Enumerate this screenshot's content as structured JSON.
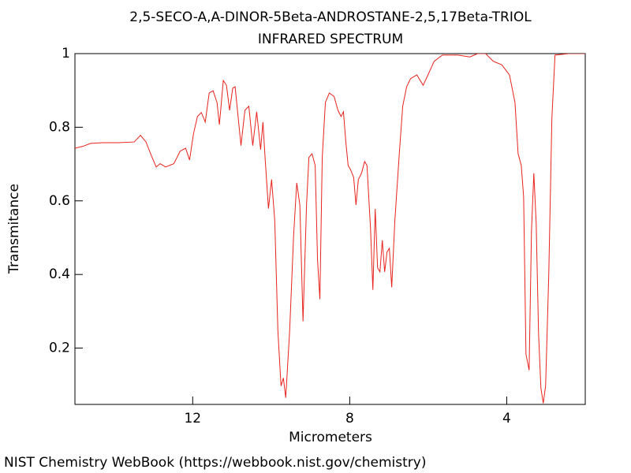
{
  "chart_data": {
    "type": "line",
    "title": "2,5-SECO-A,A-DINOR-5Beta-ANDROSTANE-2,5,17Beta-TRIOL",
    "subtitle": "INFRARED SPECTRUM",
    "x_label": "Micrometers",
    "y_label": "Transmitance",
    "xlim": [
      15,
      2
    ],
    "ylim": [
      0.047,
      1
    ],
    "xticks": [
      12,
      8,
      4
    ],
    "yticks": [
      0.2,
      0.4,
      0.6,
      0.8,
      1
    ],
    "series": [
      {
        "color": "#e8231c",
        "x": [
          15.0,
          14.8,
          14.6,
          14.3,
          13.89,
          13.49,
          13.33,
          13.19,
          13.05,
          12.93,
          12.83,
          12.69,
          12.48,
          12.32,
          12.18,
          12.08,
          11.98,
          11.88,
          11.78,
          11.68,
          11.58,
          11.48,
          11.38,
          11.32,
          11.22,
          11.14,
          11.06,
          10.98,
          10.92,
          10.84,
          10.77,
          10.67,
          10.57,
          10.47,
          10.37,
          10.27,
          10.21,
          10.15,
          10.07,
          9.99,
          9.91,
          9.83,
          9.75,
          9.69,
          9.63,
          9.53,
          9.43,
          9.35,
          9.27,
          9.19,
          9.1,
          9.04,
          8.96,
          8.88,
          8.82,
          8.76,
          8.7,
          8.62,
          8.52,
          8.4,
          8.3,
          8.22,
          8.16,
          8.1,
          8.04,
          7.98,
          7.9,
          7.84,
          7.78,
          7.7,
          7.62,
          7.56,
          7.47,
          7.41,
          7.35,
          7.29,
          7.23,
          7.17,
          7.11,
          7.05,
          6.99,
          6.93,
          6.85,
          6.73,
          6.65,
          6.55,
          6.45,
          6.29,
          6.13,
          6.05,
          5.85,
          5.64,
          5.24,
          4.94,
          4.74,
          4.54,
          4.34,
          4.13,
          3.93,
          3.79,
          3.71,
          3.63,
          3.57,
          3.51,
          3.43,
          3.37,
          3.31,
          3.25,
          3.19,
          3.13,
          3.07,
          3.01,
          2.93,
          2.85,
          2.77,
          2.42,
          2.0
        ],
        "values": [
          0.743,
          0.748,
          0.756,
          0.758,
          0.758,
          0.76,
          0.778,
          0.76,
          0.722,
          0.692,
          0.701,
          0.692,
          0.701,
          0.735,
          0.743,
          0.711,
          0.782,
          0.829,
          0.84,
          0.814,
          0.893,
          0.899,
          0.867,
          0.807,
          0.927,
          0.914,
          0.846,
          0.906,
          0.91,
          0.825,
          0.75,
          0.846,
          0.857,
          0.75,
          0.842,
          0.739,
          0.814,
          0.707,
          0.579,
          0.658,
          0.547,
          0.247,
          0.097,
          0.119,
          0.065,
          0.247,
          0.504,
          0.649,
          0.589,
          0.273,
          0.589,
          0.718,
          0.728,
          0.696,
          0.44,
          0.333,
          0.718,
          0.867,
          0.893,
          0.884,
          0.846,
          0.829,
          0.842,
          0.761,
          0.696,
          0.685,
          0.664,
          0.589,
          0.658,
          0.675,
          0.707,
          0.696,
          0.525,
          0.358,
          0.578,
          0.418,
          0.407,
          0.493,
          0.407,
          0.461,
          0.471,
          0.365,
          0.547,
          0.739,
          0.857,
          0.91,
          0.932,
          0.942,
          0.914,
          0.932,
          0.979,
          0.996,
          0.996,
          0.991,
          1.0,
          1.0,
          0.979,
          0.97,
          0.942,
          0.867,
          0.728,
          0.696,
          0.611,
          0.183,
          0.14,
          0.518,
          0.675,
          0.54,
          0.241,
          0.092,
          0.05,
          0.097,
          0.397,
          0.825,
          0.996,
          1.0,
          1.0
        ]
      }
    ]
  },
  "footer": "NIST Chemistry WebBook (https://webbook.nist.gov/chemistry)"
}
